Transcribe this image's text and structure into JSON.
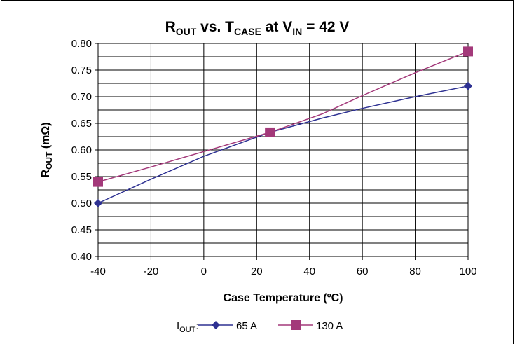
{
  "chart_data": {
    "type": "line",
    "title": {
      "r": "R",
      "r_sub": "OUT",
      "vs": " vs. T",
      "t_sub": "CASE",
      "at": " at V",
      "v_sub": "IN",
      "value": " = 42 V"
    },
    "xlabel": "Case Temperature (ºC)",
    "ylabel": {
      "r": "R",
      "r_sub": "OUT",
      "unit": " (mΩ)"
    },
    "xlim": [
      -40,
      100
    ],
    "ylim": [
      0.4,
      0.8
    ],
    "x_ticks": [
      "-40",
      "-20",
      "0",
      "20",
      "40",
      "60",
      "80",
      "100"
    ],
    "x_tick_values": [
      -40,
      -20,
      0,
      20,
      40,
      60,
      80,
      100
    ],
    "y_ticks": [
      "0.40",
      "0.45",
      "0.50",
      "0.55",
      "0.60",
      "0.65",
      "0.70",
      "0.75",
      "0.80"
    ],
    "y_tick_values": [
      0.4,
      0.45,
      0.5,
      0.55,
      0.6,
      0.65,
      0.7,
      0.75,
      0.8
    ],
    "y_minor_step": 0.025,
    "grid": true,
    "legend": {
      "prefix": "I",
      "prefix_sub": "OUT",
      "prefix_colon": ":",
      "placement": "bottom"
    },
    "series": [
      {
        "name": "65 A",
        "color": "#2e3192",
        "marker": "diamond",
        "points": [
          {
            "x": -40,
            "y": 0.5
          },
          {
            "x": 25,
            "y": 0.633
          },
          {
            "x": 100,
            "y": 0.72
          }
        ],
        "curve": [
          {
            "x": -40,
            "y": 0.5
          },
          {
            "x": -20,
            "y": 0.545
          },
          {
            "x": 0,
            "y": 0.588
          },
          {
            "x": 25,
            "y": 0.633
          },
          {
            "x": 45,
            "y": 0.66
          },
          {
            "x": 60,
            "y": 0.678
          },
          {
            "x": 80,
            "y": 0.7
          },
          {
            "x": 100,
            "y": 0.72
          }
        ]
      },
      {
        "name": "130 A",
        "color": "#a3397a",
        "marker": "square",
        "points": [
          {
            "x": -40,
            "y": 0.54
          },
          {
            "x": 25,
            "y": 0.633
          },
          {
            "x": 100,
            "y": 0.785
          }
        ],
        "curve": [
          {
            "x": -40,
            "y": 0.54
          },
          {
            "x": -20,
            "y": 0.568
          },
          {
            "x": 0,
            "y": 0.597
          },
          {
            "x": 25,
            "y": 0.633
          },
          {
            "x": 45,
            "y": 0.668
          },
          {
            "x": 60,
            "y": 0.702
          },
          {
            "x": 80,
            "y": 0.745
          },
          {
            "x": 100,
            "y": 0.785
          }
        ]
      }
    ]
  }
}
